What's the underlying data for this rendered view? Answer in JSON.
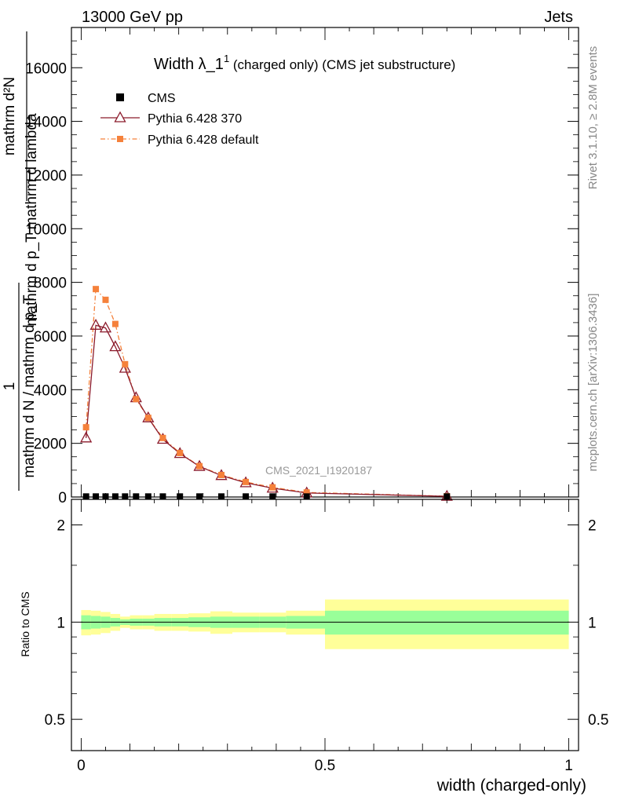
{
  "header": {
    "left": "13000 GeV pp",
    "right": "Jets"
  },
  "side_labels": {
    "rivet": "Rivet 3.1.10, ≥ 2.8M events",
    "mcplots": "mcplots.cern.ch [arXiv:1306.3436]"
  },
  "watermark": "CMS_2021_I1920187",
  "chart_data": {
    "type": "line",
    "title_main": "Width λ_1",
    "title_sup": "1",
    "title_tail": " (charged only) (CMS jet substructure)",
    "ylabel_numer": "mathrm d²N",
    "ylabel_denom": "mathrm d p_T mathrm d lambda",
    "ylabel_left_numer": "1",
    "ylabel_left_denom": "mathrm d N / mathrm d p_T",
    "xlabel": "width (charged-only)",
    "ratio_ylabel": "Ratio to CMS",
    "xlim": [
      -0.02,
      1.02
    ],
    "ylim": [
      0,
      17500
    ],
    "ratio_ylim": [
      0.4,
      2.4
    ],
    "x_ticks": [
      "0",
      "0.5",
      "1"
    ],
    "y_ticks": [
      "0",
      "2000",
      "4000",
      "6000",
      "8000",
      "10000",
      "12000",
      "14000",
      "16000"
    ],
    "ratio_ticks": [
      "0.5",
      "1",
      "2"
    ],
    "x": [
      0.01,
      0.03,
      0.05,
      0.07,
      0.09,
      0.1125,
      0.1375,
      0.1675,
      0.2025,
      0.2425,
      0.2875,
      0.3375,
      0.3925,
      0.4625,
      0.75
    ],
    "series": [
      {
        "name": "CMS",
        "values": [
          20,
          20,
          20,
          20,
          20,
          20,
          20,
          20,
          20,
          20,
          20,
          20,
          20,
          20,
          20
        ],
        "color": "#000000",
        "marker": "square"
      },
      {
        "name": "Pythia 6.428 370",
        "values": [
          2200,
          6400,
          6300,
          5600,
          4800,
          3700,
          2950,
          2150,
          1620,
          1140,
          800,
          530,
          330,
          150,
          25
        ],
        "color": "#8b1a2b",
        "marker": "triangle-open"
      },
      {
        "name": "Pythia 6.428 default",
        "values": [
          2600,
          7750,
          7350,
          6450,
          4950,
          3650,
          2950,
          2200,
          1640,
          1150,
          820,
          560,
          360,
          170,
          30
        ],
        "color": "#f5813b",
        "marker": "square-small"
      }
    ],
    "ratio_bins": [
      [
        0.0,
        0.02,
        0.05,
        0.09
      ],
      [
        0.02,
        0.04,
        0.045,
        0.085
      ],
      [
        0.04,
        0.06,
        0.04,
        0.075
      ],
      [
        0.06,
        0.08,
        0.03,
        0.06
      ],
      [
        0.08,
        0.1,
        0.02,
        0.04
      ],
      [
        0.1,
        0.125,
        0.025,
        0.05
      ],
      [
        0.125,
        0.15,
        0.025,
        0.05
      ],
      [
        0.15,
        0.185,
        0.03,
        0.06
      ],
      [
        0.185,
        0.22,
        0.03,
        0.06
      ],
      [
        0.22,
        0.265,
        0.035,
        0.065
      ],
      [
        0.265,
        0.31,
        0.04,
        0.08
      ],
      [
        0.31,
        0.365,
        0.04,
        0.07
      ],
      [
        0.365,
        0.42,
        0.04,
        0.07
      ],
      [
        0.42,
        0.5,
        0.045,
        0.085
      ],
      [
        0.5,
        1.0,
        0.085,
        0.175
      ]
    ],
    "grid": false,
    "legend_position": "top-left"
  }
}
